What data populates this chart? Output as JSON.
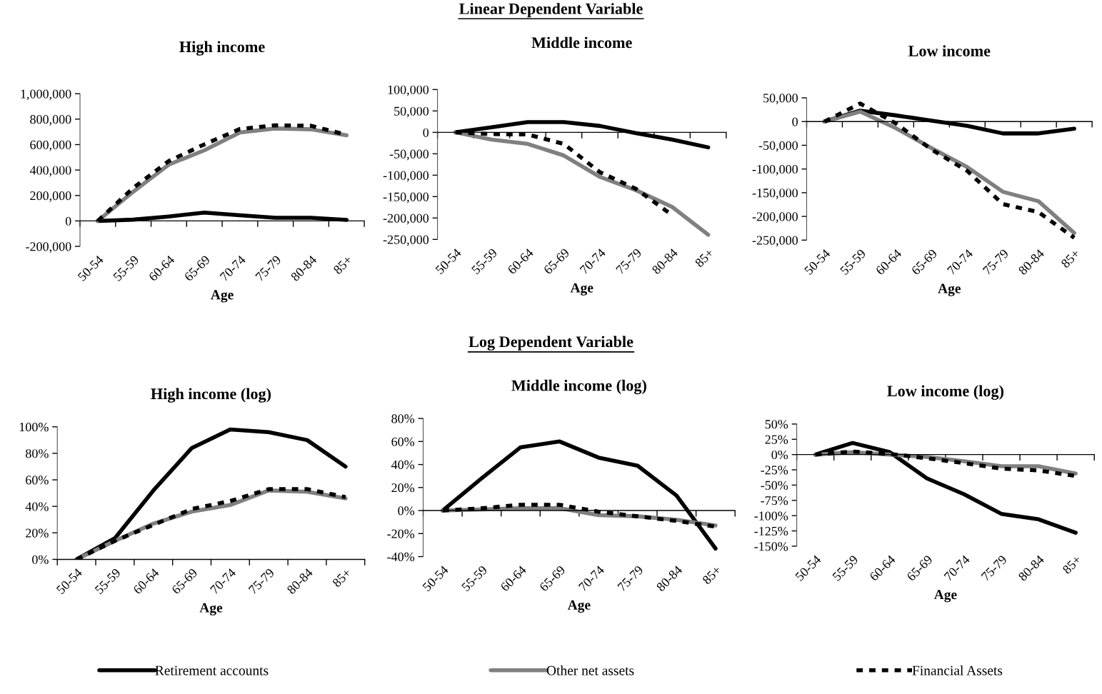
{
  "chart_data": [
    {
      "type": "line",
      "title": "High income",
      "xlabel": "Age",
      "annotations": [
        "Linear Dependent Variable"
      ],
      "legend": "bottom",
      "categories": [
        "50-54",
        "55-59",
        "60-64",
        "65-69",
        "70-74",
        "75-79",
        "80-84",
        "85+"
      ],
      "ylim": [
        -200000,
        1000000
      ],
      "yticks": [
        {
          "value": -200000,
          "label": "-200,000"
        },
        0,
        {
          "value": 200000,
          "label": "200,000"
        },
        {
          "value": 400000,
          "label": "400,000"
        },
        {
          "value": 600000,
          "label": "600,000"
        },
        {
          "value": 800000,
          "label": "800,000"
        },
        {
          "value": 1000000,
          "label": "1,000,000"
        }
      ],
      "series": [
        {
          "name": "Retirement accounts",
          "color": "#000000",
          "line_style": "solid",
          "values": [
            0,
            10000,
            35000,
            65000,
            45000,
            25000,
            25000,
            8000
          ]
        },
        {
          "name": "Other net assets",
          "color": "#808080",
          "line_style": "solid",
          "values": [
            0,
            230000,
            443000,
            555000,
            695000,
            727000,
            720000,
            673000
          ]
        },
        {
          "name": "Financial Assets",
          "color": "#000000",
          "line_style": "dashed",
          "values": [
            0,
            260000,
            471000,
            602000,
            723000,
            751000,
            748000,
            677000
          ]
        }
      ]
    },
    {
      "type": "line",
      "title": "Middle income",
      "xlabel": "Age",
      "categories": [
        "50-54",
        "55-59",
        "60-64",
        "65-69",
        "70-74",
        "75-79",
        "80-84",
        "85+"
      ],
      "ylim": [
        -250000,
        100000
      ],
      "yticks": [
        {
          "value": -250000,
          "label": "-250,000"
        },
        {
          "value": -200000,
          "label": "-200,000"
        },
        {
          "value": -150000,
          "label": "-150,000"
        },
        {
          "value": -100000,
          "label": "-100,000"
        },
        {
          "value": -50000,
          "label": "-50,000"
        },
        0,
        {
          "value": 50000,
          "label": "50,000"
        },
        {
          "value": 100000,
          "label": "100,000"
        }
      ],
      "series": [
        {
          "color": "#000000",
          "line_style": "solid",
          "values": [
            0,
            12000,
            24000,
            24000,
            15000,
            -2000,
            -17000,
            -35000
          ]
        },
        {
          "color": "#808080",
          "line_style": "solid",
          "values": [
            0,
            -17000,
            -27000,
            -54000,
            -104000,
            -135000,
            -174000,
            -239000
          ]
        },
        {
          "color": "#000000",
          "line_style": "dashed",
          "values": [
            0,
            -4000,
            -5000,
            -27000,
            -93000,
            -132000,
            -193000,
            null
          ]
        }
      ]
    },
    {
      "type": "line",
      "title": "Low income",
      "xlabel": "Age",
      "categories": [
        "50-54",
        "55-59",
        "60-64",
        "65-69",
        "70-74",
        "75-79",
        "80-84",
        "85+"
      ],
      "ylim": [
        -250000,
        50000
      ],
      "yticks": [
        {
          "value": -250000,
          "label": "-250,000"
        },
        {
          "value": -200000,
          "label": "-200,000"
        },
        {
          "value": -150000,
          "label": "-150,000"
        },
        {
          "value": -100000,
          "label": "-100,000"
        },
        {
          "value": -50000,
          "label": "-50,000"
        },
        0,
        {
          "value": 50000,
          "label": "50,000"
        }
      ],
      "series": [
        {
          "color": "#000000",
          "line_style": "solid",
          "values": [
            0,
            23000,
            13000,
            2000,
            -9000,
            -25000,
            -25000,
            -15000
          ]
        },
        {
          "color": "#808080",
          "line_style": "solid",
          "values": [
            0,
            21000,
            -14000,
            -56000,
            -96000,
            -148000,
            -168000,
            -235000
          ]
        },
        {
          "color": "#000000",
          "line_style": "dashed",
          "values": [
            0,
            38000,
            -4000,
            -59000,
            -104000,
            -174000,
            -191000,
            -245000
          ]
        }
      ]
    },
    {
      "type": "line",
      "title": "High income (log)",
      "xlabel": "Age",
      "annotations": [
        "Log Dependent Variable"
      ],
      "categories": [
        "50-54",
        "55-59",
        "60-64",
        "65-69",
        "70-74",
        "75-79",
        "80-84",
        "85+"
      ],
      "ylim": [
        0,
        100
      ],
      "yticks": [
        {
          "value": 0,
          "label": "0%"
        },
        {
          "value": 20,
          "label": "20%"
        },
        {
          "value": 40,
          "label": "40%"
        },
        {
          "value": 60,
          "label": "60%"
        },
        {
          "value": 80,
          "label": "80%"
        },
        {
          "value": 100,
          "label": "100%"
        }
      ],
      "series": [
        {
          "color": "#000000",
          "line_style": "solid",
          "values": [
            0,
            16,
            52,
            84,
            98,
            96,
            90,
            70
          ]
        },
        {
          "color": "#808080",
          "line_style": "solid",
          "values": [
            0,
            14,
            27,
            36,
            41,
            52,
            51,
            46
          ]
        },
        {
          "color": "#000000",
          "line_style": "dashed",
          "values": [
            0,
            14,
            26,
            38,
            44,
            53,
            53,
            47
          ]
        }
      ]
    },
    {
      "type": "line",
      "title": "Middle income (log)",
      "xlabel": "Age",
      "categories": [
        "50-54",
        "55-59",
        "60-64",
        "65-69",
        "70-74",
        "75-79",
        "80-84",
        "85+"
      ],
      "ylim": [
        -40,
        80
      ],
      "yticks": [
        {
          "value": -40,
          "label": "-40%"
        },
        {
          "value": -20,
          "label": "-20%"
        },
        {
          "value": 0,
          "label": "0%"
        },
        {
          "value": 20,
          "label": "20%"
        },
        {
          "value": 40,
          "label": "40%"
        },
        {
          "value": 60,
          "label": "60%"
        },
        {
          "value": 80,
          "label": "80%"
        }
      ],
      "series": [
        {
          "color": "#000000",
          "line_style": "solid",
          "values": [
            0,
            28,
            55,
            60,
            46,
            39,
            13,
            -33
          ]
        },
        {
          "color": "#808080",
          "line_style": "solid",
          "values": [
            0,
            1,
            2,
            2,
            -4,
            -5,
            -8,
            -13
          ]
        },
        {
          "color": "#000000",
          "line_style": "dashed",
          "values": [
            0,
            2,
            5,
            5,
            -1,
            -5,
            -9,
            -14
          ]
        }
      ]
    },
    {
      "type": "line",
      "title": "Low income (log)",
      "xlabel": "Age",
      "categories": [
        "50-54",
        "55-59",
        "60-64",
        "65-69",
        "70-74",
        "75-79",
        "80-84",
        "85+"
      ],
      "ylim": [
        -150,
        50
      ],
      "yticks": [
        {
          "value": -150,
          "label": "-150%"
        },
        {
          "value": -125,
          "label": "-125%"
        },
        {
          "value": -100,
          "label": "-100%"
        },
        {
          "value": -75,
          "label": "-75%"
        },
        {
          "value": -50,
          "label": "-50%"
        },
        {
          "value": -25,
          "label": "-25%"
        },
        {
          "value": 0,
          "label": "0%"
        },
        {
          "value": 25,
          "label": "25%"
        },
        {
          "value": 50,
          "label": "50%"
        }
      ],
      "series": [
        {
          "color": "#000000",
          "line_style": "solid",
          "values": [
            0,
            19,
            4,
            -39,
            -65,
            -97,
            -106,
            -128
          ]
        },
        {
          "color": "#808080",
          "line_style": "solid",
          "values": [
            0,
            4,
            0,
            -4,
            -11,
            -19,
            -19,
            -31
          ]
        },
        {
          "color": "#000000",
          "line_style": "dashed",
          "values": [
            0,
            5,
            1,
            -6,
            -14,
            -23,
            -26,
            -35
          ]
        }
      ]
    }
  ]
}
